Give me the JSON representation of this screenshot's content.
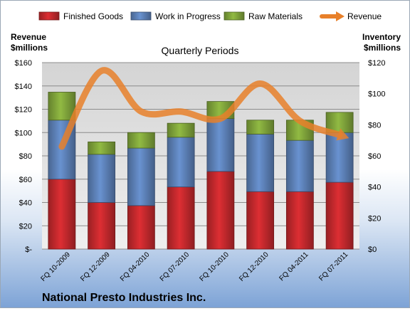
{
  "chart_data": {
    "type": "bar",
    "stacked": true,
    "title": "Quarterly Periods",
    "left_axis_title": [
      "Revenue",
      "$millions"
    ],
    "right_axis_title": [
      "Inventory",
      "$millions"
    ],
    "company": "National Presto Industries Inc.",
    "categories": [
      "FQ 10-2009",
      "FQ 12-2009",
      "FQ 04-2010",
      "FQ 07-2010",
      "FQ 10-2010",
      "FQ 12-2010",
      "FQ 04-2011",
      "FQ 07-2011"
    ],
    "left_ticks": [
      "$-",
      "$20",
      "$40",
      "$60",
      "$80",
      "$100",
      "$120",
      "$140",
      "$160"
    ],
    "right_ticks": [
      "$0",
      "$20",
      "$40",
      "$60",
      "$80",
      "$100",
      "$120"
    ],
    "ylim_left": [
      0,
      160
    ],
    "ylim_right": [
      0,
      120
    ],
    "grid": true,
    "legend_position": "top",
    "series": [
      {
        "name": "Finished Goods",
        "axis": "right",
        "color": "#c0282c",
        "values": [
          45,
          30,
          28,
          40,
          50,
          37,
          37,
          43
        ]
      },
      {
        "name": "Work in Progress",
        "axis": "right",
        "color": "#5b7fb5",
        "values": [
          38,
          31,
          37,
          32,
          34,
          37,
          33,
          32
        ]
      },
      {
        "name": "Raw Materials",
        "axis": "right",
        "color": "#7ea23a",
        "values": [
          18,
          8,
          10,
          9,
          11,
          9,
          13,
          13
        ]
      }
    ],
    "line_series": {
      "name": "Revenue",
      "axis": "left",
      "color": "#e8802a",
      "values": [
        88,
        153,
        118,
        118,
        112,
        142,
        110,
        98
      ]
    }
  }
}
